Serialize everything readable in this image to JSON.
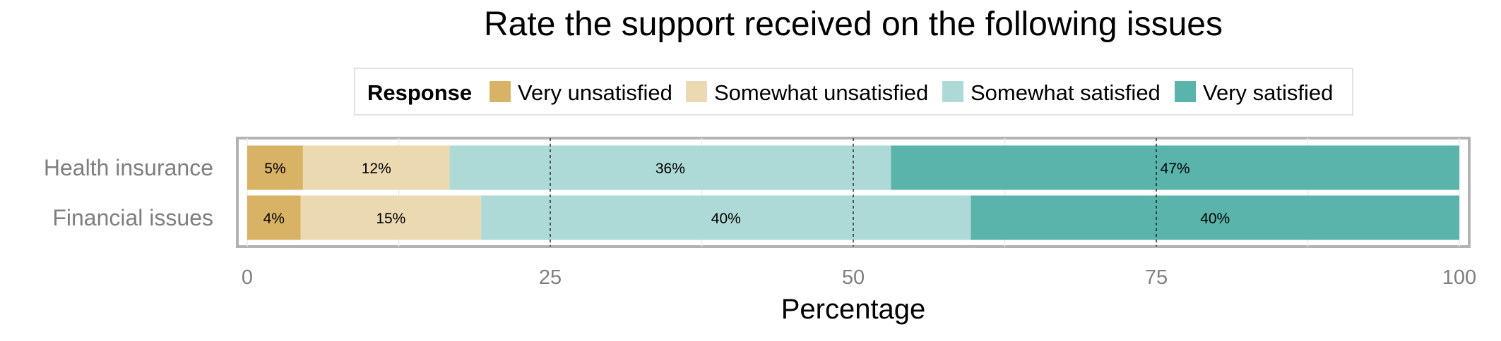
{
  "chart_data": {
    "type": "bar",
    "orientation": "horizontal",
    "stacked": true,
    "title": "Rate the support received on the following issues",
    "xlabel": "Percentage",
    "ylabel": "",
    "xlim": [
      0,
      100
    ],
    "x_ticks": [
      0,
      25,
      50,
      75,
      100
    ],
    "grid": true,
    "legend": {
      "title": "Response",
      "position": "top",
      "entries": [
        "Very unsatisfied",
        "Somewhat unsatisfied",
        "Somewhat satisfied",
        "Very satisfied"
      ]
    },
    "categories": [
      "Health insurance",
      "Financial issues"
    ],
    "series": [
      {
        "name": "Very unsatisfied",
        "color": "#D8B365",
        "values": [
          4.6,
          4.4
        ],
        "labels": [
          "5%",
          "4%"
        ]
      },
      {
        "name": "Somewhat unsatisfied",
        "color": "#EBD9B2",
        "values": [
          12.1,
          14.9
        ],
        "labels": [
          "12%",
          "15%"
        ]
      },
      {
        "name": "Somewhat satisfied",
        "color": "#ADDAD6",
        "values": [
          36.4,
          40.4
        ],
        "labels": [
          "36%",
          "40%"
        ]
      },
      {
        "name": "Very satisfied",
        "color": "#5AB4AC",
        "values": [
          46.9,
          40.3
        ],
        "labels": [
          "47%",
          "40%"
        ]
      }
    ]
  }
}
